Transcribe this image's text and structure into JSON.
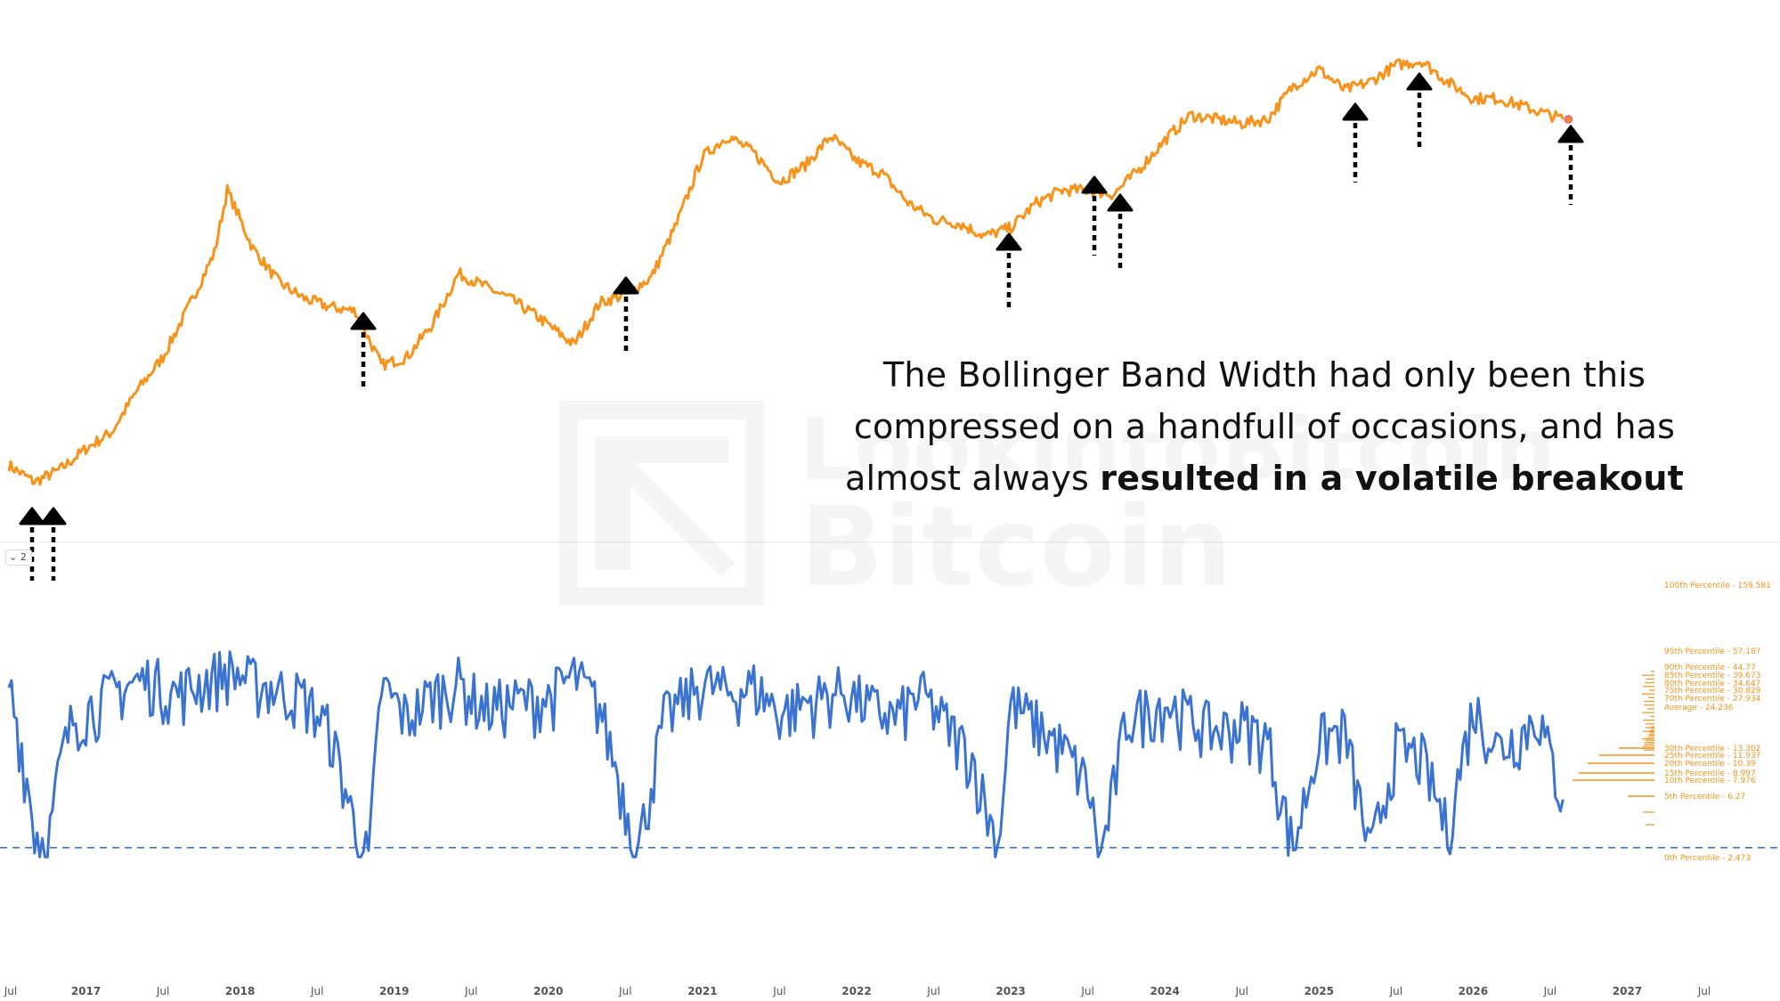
{
  "chart_data": [
    {
      "type": "line",
      "title": "",
      "yscale": "log",
      "grid": false,
      "series": [
        {
          "color": "#f7931a",
          "points": [
            [
              "2016-07",
              0.34
            ],
            [
              "2016-09",
              0.3
            ],
            [
              "2016-11",
              0.33
            ],
            [
              "2017-01",
              0.38
            ],
            [
              "2017-03",
              0.42
            ],
            [
              "2017-05",
              0.52
            ],
            [
              "2017-07",
              0.6
            ],
            [
              "2017-09",
              0.72
            ],
            [
              "2017-11",
              0.85
            ],
            [
              "2017-12",
              1.0
            ],
            [
              "2018-02",
              0.86
            ],
            [
              "2018-04",
              0.78
            ],
            [
              "2018-06",
              0.74
            ],
            [
              "2018-08",
              0.72
            ],
            [
              "2018-10",
              0.71
            ],
            [
              "2018-12",
              0.58
            ],
            [
              "2019-02",
              0.6
            ],
            [
              "2019-04",
              0.68
            ],
            [
              "2019-06",
              0.8
            ],
            [
              "2019-08",
              0.77
            ],
            [
              "2019-10",
              0.74
            ],
            [
              "2019-12",
              0.7
            ],
            [
              "2020-03",
              0.63
            ],
            [
              "2020-05",
              0.73
            ],
            [
              "2020-07",
              0.75
            ],
            [
              "2020-09",
              0.79
            ],
            [
              "2020-11",
              0.92
            ],
            [
              "2021-01",
              1.08
            ],
            [
              "2021-03",
              1.13
            ],
            [
              "2021-05",
              1.09
            ],
            [
              "2021-07",
              1.02
            ],
            [
              "2021-09",
              1.06
            ],
            [
              "2021-11",
              1.13
            ],
            [
              "2022-01",
              1.07
            ],
            [
              "2022-03",
              1.04
            ],
            [
              "2022-05",
              0.97
            ],
            [
              "2022-07",
              0.93
            ],
            [
              "2022-09",
              0.92
            ],
            [
              "2022-11",
              0.89
            ],
            [
              "2023-01",
              0.91
            ],
            [
              "2023-03",
              0.97
            ],
            [
              "2023-05",
              1.0
            ],
            [
              "2023-07",
              1.0
            ],
            [
              "2023-09",
              0.99
            ],
            [
              "2023-11",
              1.05
            ],
            [
              "2024-01",
              1.12
            ],
            [
              "2024-03",
              1.18
            ],
            [
              "2024-05",
              1.17
            ],
            [
              "2024-07",
              1.16
            ],
            [
              "2024-09",
              1.17
            ],
            [
              "2024-11",
              1.25
            ],
            [
              "2025-01",
              1.29
            ],
            [
              "2025-03",
              1.24
            ],
            [
              "2025-05",
              1.26
            ],
            [
              "2025-07",
              1.3
            ],
            [
              "2025-09",
              1.31
            ],
            [
              "2025-11",
              1.26
            ],
            [
              "2026-01",
              1.22
            ],
            [
              "2026-03",
              1.22
            ],
            [
              "2026-05",
              1.2
            ],
            [
              "2026-07",
              1.18
            ],
            [
              "2026-08",
              1.17
            ]
          ]
        },
        {
          "color": "#3b73d1",
          "points": [
            [
              "2016-07",
              38
            ],
            [
              "2016-08",
              14
            ],
            [
              "2016-09",
              4
            ],
            [
              "2016-10",
              3
            ],
            [
              "2016-11",
              11
            ],
            [
              "2016-12",
              22
            ],
            [
              "2017-02",
              28
            ],
            [
              "2017-04",
              36
            ],
            [
              "2017-06",
              40
            ],
            [
              "2017-08",
              32
            ],
            [
              "2017-10",
              38
            ],
            [
              "2017-12",
              46
            ],
            [
              "2018-02",
              38
            ],
            [
              "2018-04",
              34
            ],
            [
              "2018-06",
              30
            ],
            [
              "2018-08",
              18
            ],
            [
              "2018-10",
              4
            ],
            [
              "2018-11",
              2.5
            ],
            [
              "2018-12",
              36
            ],
            [
              "2019-02",
              22
            ],
            [
              "2019-04",
              32
            ],
            [
              "2019-06",
              38
            ],
            [
              "2019-08",
              26
            ],
            [
              "2019-10",
              28
            ],
            [
              "2020-01",
              30
            ],
            [
              "2020-03",
              42
            ],
            [
              "2020-05",
              26
            ],
            [
              "2020-07",
              6
            ],
            [
              "2020-08",
              3
            ],
            [
              "2020-10",
              22
            ],
            [
              "2021-01",
              38
            ],
            [
              "2021-03",
              32
            ],
            [
              "2021-05",
              36
            ],
            [
              "2021-07",
              24
            ],
            [
              "2021-09",
              28
            ],
            [
              "2021-12",
              34
            ],
            [
              "2022-02",
              26
            ],
            [
              "2022-04",
              22
            ],
            [
              "2022-06",
              32
            ],
            [
              "2022-08",
              20
            ],
            [
              "2022-10",
              12
            ],
            [
              "2022-12",
              3
            ],
            [
              "2023-01",
              28
            ],
            [
              "2023-03",
              20
            ],
            [
              "2023-05",
              14
            ],
            [
              "2023-07",
              8
            ],
            [
              "2023-08",
              2.5
            ],
            [
              "2023-10",
              22
            ],
            [
              "2024-01",
              28
            ],
            [
              "2024-03",
              22
            ],
            [
              "2024-05",
              18
            ],
            [
              "2024-07",
              20
            ],
            [
              "2024-09",
              16
            ],
            [
              "2024-11",
              3
            ],
            [
              "2025-01",
              16
            ],
            [
              "2025-03",
              18
            ],
            [
              "2025-05",
              2.7
            ],
            [
              "2025-07",
              14
            ],
            [
              "2025-09",
              12
            ],
            [
              "2025-11",
              4
            ],
            [
              "2026-01",
              26
            ],
            [
              "2026-03",
              14
            ],
            [
              "2026-05",
              18
            ],
            [
              "2026-06",
              24
            ],
            [
              "2026-07",
              12
            ],
            [
              "2026-08",
              6.27
            ]
          ]
        }
      ],
      "percentiles": [
        {
          "label": "100th Percentile - 159.581",
          "value": 159.581
        },
        {
          "label": "95th Percentile - 57.187",
          "value": 57.187
        },
        {
          "label": "90th Percentile - 44.77",
          "value": 44.77
        },
        {
          "label": "85th Percentile - 39.673",
          "value": 39.673
        },
        {
          "label": "80th Percentile - 34.647",
          "value": 34.647
        },
        {
          "label": "75th Percentile - 30.829",
          "value": 30.829
        },
        {
          "label": "70th Percentile - 27.934",
          "value": 27.934
        },
        {
          "label": "Average - 24.236",
          "value": 24.236
        },
        {
          "label": "30th Percentile - 13.302",
          "value": 13.302
        },
        {
          "label": "25th Percentile - 11.937",
          "value": 11.937
        },
        {
          "label": "20th Percentile - 10.39",
          "value": 10.39
        },
        {
          "label": "15th Percentile - 8.997",
          "value": 8.997
        },
        {
          "label": "10th Percentile - 7.976",
          "value": 7.976
        },
        {
          "label": "5th Percentile - 6.27",
          "value": 6.27
        },
        {
          "label": "0th Percentile - 2.473",
          "value": 2.473
        }
      ],
      "threshold": 3.0,
      "x_ticks": [
        "Jul",
        "2017",
        "Jul",
        "2018",
        "Jul",
        "2019",
        "Jul",
        "2020",
        "Jul",
        "2021",
        "Jul",
        "2022",
        "Jul",
        "2023",
        "Jul",
        "2024",
        "Jul",
        "2025",
        "Jul",
        "2026",
        "Jul",
        "2027",
        "Jul"
      ],
      "arrows": [
        "2016-08",
        "2016-10",
        "2018-11",
        "2020-08",
        "2022-12",
        "2023-08",
        "2023-10",
        "2025-05",
        "2025-10",
        "2026-08"
      ]
    }
  ],
  "annotation": {
    "line1": "The Bollinger Band Width had only been this",
    "line2": "compressed on a handfull of occasions, and has",
    "line3_plain": "almost always ",
    "line3_bold": "resulted in a volatile breakout"
  },
  "pane_selector": {
    "value": "2"
  },
  "watermark": {
    "line1": "LookIntoBitcoin",
    "line2": "Bitcoin"
  }
}
